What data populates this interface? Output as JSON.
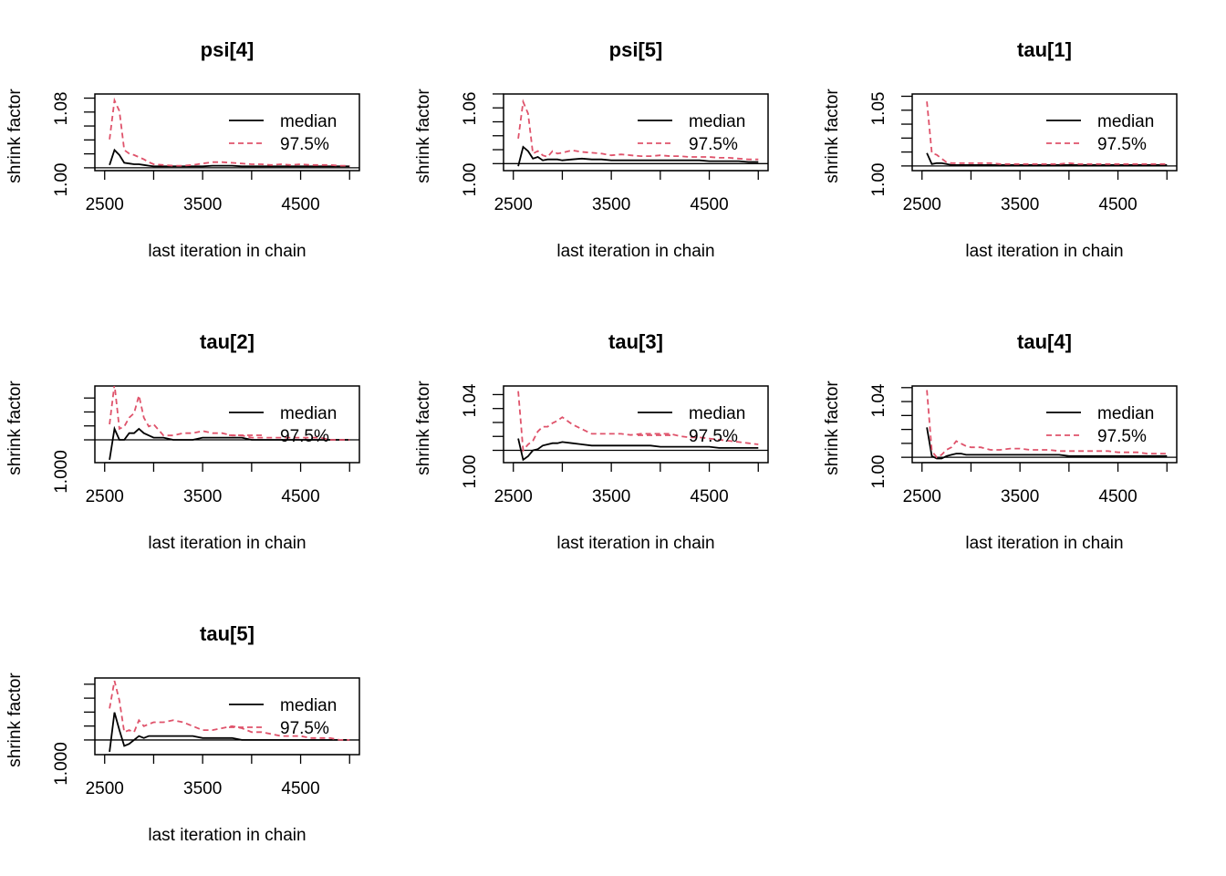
{
  "common": {
    "xlabel": "last iteration in chain",
    "ylabel": "shrink factor",
    "legend": [
      "median",
      "97.5%"
    ],
    "xticks": [
      2500,
      3500,
      4500
    ],
    "xlim": [
      2500,
      5000
    ],
    "colors": {
      "median": "#000000",
      "upper": "#df536b"
    }
  },
  "chart_data": [
    {
      "type": "line",
      "title": "psi[4]",
      "ylim": [
        1.0,
        1.1
      ],
      "ytick_labels": [
        "1.00",
        "1.08"
      ],
      "x": [
        2550,
        2600,
        2650,
        2700,
        2750,
        2800,
        2850,
        2900,
        2950,
        3000,
        3100,
        3200,
        3300,
        3400,
        3500,
        3600,
        3700,
        3800,
        3900,
        4000,
        4100,
        4200,
        4300,
        4400,
        4500,
        4600,
        4700,
        4800,
        4900,
        5000
      ],
      "series": [
        {
          "name": "median",
          "values": [
            1.004,
            1.025,
            1.018,
            1.007,
            1.006,
            1.005,
            1.005,
            1.004,
            1.003,
            1.002,
            1.002,
            1.002,
            1.002,
            1.002,
            1.002,
            1.003,
            1.003,
            1.003,
            1.002,
            1.002,
            1.002,
            1.002,
            1.002,
            1.002,
            1.002,
            1.002,
            1.002,
            1.002,
            1.002,
            1.002
          ]
        },
        {
          "name": "97.5%",
          "values": [
            1.04,
            1.095,
            1.08,
            1.025,
            1.02,
            1.018,
            1.015,
            1.012,
            1.008,
            1.005,
            1.004,
            1.003,
            1.003,
            1.004,
            1.006,
            1.008,
            1.008,
            1.007,
            1.006,
            1.005,
            1.005,
            1.004,
            1.005,
            1.004,
            1.005,
            1.004,
            1.004,
            1.004,
            1.003,
            1.003
          ]
        }
      ]
    },
    {
      "type": "line",
      "title": "psi[5]",
      "ylim": [
        0.995,
        1.08
      ],
      "ytick_labels": [
        "1.00",
        "1.06"
      ],
      "x": [
        2550,
        2600,
        2650,
        2700,
        2750,
        2800,
        2850,
        2900,
        2950,
        3000,
        3100,
        3200,
        3300,
        3400,
        3500,
        3600,
        3700,
        3800,
        3900,
        4000,
        4100,
        4200,
        4300,
        4400,
        4500,
        4600,
        4700,
        4800,
        4900,
        5000
      ],
      "series": [
        {
          "name": "median",
          "values": [
            0.997,
            1.02,
            1.015,
            1.006,
            1.008,
            1.004,
            1.005,
            1.005,
            1.005,
            1.004,
            1.005,
            1.006,
            1.005,
            1.005,
            1.004,
            1.004,
            1.004,
            1.004,
            1.004,
            1.004,
            1.004,
            1.004,
            1.004,
            1.004,
            1.003,
            1.003,
            1.003,
            1.003,
            1.002,
            1.002
          ]
        },
        {
          "name": "97.5%",
          "values": [
            1.03,
            1.074,
            1.06,
            1.012,
            1.015,
            1.01,
            1.008,
            1.015,
            1.012,
            1.013,
            1.016,
            1.014,
            1.013,
            1.012,
            1.01,
            1.011,
            1.01,
            1.009,
            1.009,
            1.01,
            1.009,
            1.009,
            1.008,
            1.008,
            1.008,
            1.007,
            1.007,
            1.006,
            1.005,
            1.005
          ]
        }
      ]
    },
    {
      "type": "line",
      "title": "tau[1]",
      "ylim": [
        0.998,
        1.075
      ],
      "ytick_labels": [
        "1.00",
        "1.05"
      ],
      "x": [
        2550,
        2600,
        2650,
        2700,
        2750,
        2800,
        2850,
        2900,
        2950,
        3000,
        3100,
        3200,
        3300,
        3400,
        3500,
        3600,
        3700,
        3800,
        3900,
        4000,
        4100,
        4200,
        4300,
        4400,
        4500,
        4600,
        4700,
        4800,
        4900,
        5000
      ],
      "series": [
        {
          "name": "median",
          "values": [
            1.014,
            1.002,
            1.003,
            1.003,
            1.002,
            1.001,
            1.001,
            1.001,
            1.001,
            1.001,
            1.001,
            1.001,
            1.001,
            1.001,
            1.001,
            1.001,
            1.001,
            1.001,
            1.001,
            1.001,
            1.001,
            1.001,
            1.001,
            1.001,
            1.001,
            1.001,
            1.001,
            1.001,
            1.001,
            1.001
          ]
        },
        {
          "name": "97.5%",
          "values": [
            1.07,
            1.014,
            1.012,
            1.008,
            1.004,
            1.003,
            1.003,
            1.003,
            1.003,
            1.003,
            1.003,
            1.003,
            1.002,
            1.002,
            1.002,
            1.002,
            1.002,
            1.002,
            1.002,
            1.003,
            1.002,
            1.002,
            1.002,
            1.002,
            1.002,
            1.002,
            1.002,
            1.002,
            1.002,
            1.002
          ]
        }
      ]
    },
    {
      "type": "line",
      "title": "tau[2]",
      "ylim": [
        0.9991,
        1.0023
      ],
      "ytick_labels": [
        "1.000"
      ],
      "x": [
        2550,
        2600,
        2650,
        2700,
        2750,
        2800,
        2850,
        2900,
        2950,
        3000,
        3100,
        3200,
        3300,
        3400,
        3500,
        3600,
        3700,
        3800,
        3900,
        4000,
        4100,
        4200,
        4300,
        4400,
        4500,
        4600,
        4700,
        4800,
        4900,
        5000
      ],
      "series": [
        {
          "name": "median",
          "values": [
            0.9991,
            1.0005,
            1.0,
            1.0,
            1.0003,
            1.0003,
            1.0005,
            1.0003,
            1.0002,
            1.0001,
            1.0001,
            1.0,
            1.0,
            1.0,
            1.0001,
            1.0001,
            1.0001,
            1.0001,
            1.0001,
            1.0,
            1.0,
            1.0,
            1.0,
            1.0,
            1.0,
            1.0,
            1.0,
            1.0,
            1.0,
            1.0
          ]
        },
        {
          "name": "97.5%",
          "values": [
            1.0007,
            1.0025,
            1.0005,
            1.0006,
            1.001,
            1.0012,
            1.002,
            1.001,
            1.0006,
            1.0007,
            1.0002,
            1.0002,
            1.0003,
            1.0003,
            1.0004,
            1.0003,
            1.0003,
            1.0002,
            1.0002,
            1.0001,
            1.0001,
            1.0001,
            1.0001,
            1.0001,
            1.0001,
            1.0001,
            1.0001,
            1.0,
            1.0,
            1.0
          ]
        }
      ]
    },
    {
      "type": "line",
      "title": "tau[3]",
      "ylim": [
        0.992,
        1.052
      ],
      "ytick_labels": [
        "1.00",
        "1.04"
      ],
      "x": [
        2550,
        2600,
        2650,
        2700,
        2750,
        2800,
        2850,
        2900,
        2950,
        3000,
        3100,
        3200,
        3300,
        3400,
        3500,
        3600,
        3700,
        3800,
        3900,
        4000,
        4100,
        4200,
        4300,
        4400,
        4500,
        4600,
        4700,
        4800,
        4900,
        5000
      ],
      "series": [
        {
          "name": "median",
          "values": [
            1.01,
            0.992,
            0.995,
            1.0,
            1.001,
            1.004,
            1.005,
            1.006,
            1.006,
            1.007,
            1.006,
            1.005,
            1.004,
            1.004,
            1.004,
            1.004,
            1.004,
            1.004,
            1.004,
            1.003,
            1.003,
            1.003,
            1.003,
            1.003,
            1.003,
            1.002,
            1.002,
            1.002,
            1.002,
            1.002
          ]
        },
        {
          "name": "97.5%",
          "values": [
            1.05,
            1.0,
            1.005,
            1.008,
            1.016,
            1.02,
            1.02,
            1.023,
            1.025,
            1.028,
            1.022,
            1.018,
            1.014,
            1.014,
            1.014,
            1.014,
            1.013,
            1.014,
            1.014,
            1.014,
            1.014,
            1.012,
            1.011,
            1.011,
            1.01,
            1.009,
            1.008,
            1.007,
            1.006,
            1.005
          ]
        }
      ]
    },
    {
      "type": "line",
      "title": "tau[4]",
      "ylim": [
        0.998,
        1.055
      ],
      "ytick_labels": [
        "1.00",
        "1.04"
      ],
      "x": [
        2550,
        2600,
        2650,
        2700,
        2750,
        2800,
        2850,
        2900,
        2950,
        3000,
        3100,
        3200,
        3300,
        3400,
        3500,
        3600,
        3700,
        3800,
        3900,
        4000,
        4100,
        4200,
        4300,
        4400,
        4500,
        4600,
        4700,
        4800,
        4900,
        5000
      ],
      "series": [
        {
          "name": "median",
          "values": [
            1.024,
            1.001,
            0.999,
            0.999,
            1.001,
            1.002,
            1.003,
            1.003,
            1.002,
            1.002,
            1.002,
            1.002,
            1.002,
            1.002,
            1.002,
            1.002,
            1.002,
            1.002,
            1.002,
            1.001,
            1.001,
            1.001,
            1.001,
            1.001,
            1.001,
            1.001,
            1.001,
            1.001,
            1.001,
            1.001
          ]
        },
        {
          "name": "97.5%",
          "values": [
            1.054,
            1.005,
            1.0,
            1.002,
            1.006,
            1.008,
            1.013,
            1.011,
            1.009,
            1.008,
            1.008,
            1.006,
            1.006,
            1.007,
            1.007,
            1.006,
            1.006,
            1.006,
            1.005,
            1.005,
            1.005,
            1.005,
            1.005,
            1.005,
            1.004,
            1.004,
            1.004,
            1.003,
            1.003,
            1.003
          ]
        }
      ]
    },
    {
      "type": "line",
      "title": "tau[5]",
      "ylim": [
        0.9994,
        1.003
      ],
      "ytick_labels": [
        "1.000"
      ],
      "x": [
        2550,
        2600,
        2650,
        2700,
        2750,
        2800,
        2850,
        2900,
        2950,
        3000,
        3100,
        3200,
        3300,
        3400,
        3500,
        3600,
        3700,
        3800,
        3900,
        4000,
        4100,
        4200,
        4300,
        4400,
        4500,
        4600,
        4700,
        4800,
        4900,
        5000
      ],
      "series": [
        {
          "name": "median",
          "values": [
            0.9994,
            1.0014,
            1.0005,
            0.9997,
            0.9998,
            1.0,
            1.0002,
            1.0001,
            1.0002,
            1.0002,
            1.0002,
            1.0002,
            1.0002,
            1.0002,
            1.0001,
            1.0001,
            1.0001,
            1.0001,
            1.0,
            1.0,
            1.0,
            1.0,
            1.0,
            1.0,
            1.0,
            1.0,
            1.0,
            1.0,
            1.0,
            1.0
          ]
        },
        {
          "name": "97.5%",
          "values": [
            1.0016,
            1.003,
            1.002,
            1.0004,
            1.0005,
            1.0004,
            1.001,
            1.0007,
            1.0008,
            1.0009,
            1.0009,
            1.001,
            1.0009,
            1.0007,
            1.0005,
            1.0005,
            1.0006,
            1.0007,
            1.0006,
            1.0004,
            1.0004,
            1.0003,
            1.0002,
            1.0002,
            1.0002,
            1.0001,
            1.0001,
            1.0001,
            1.0,
            1.0
          ]
        }
      ]
    }
  ]
}
